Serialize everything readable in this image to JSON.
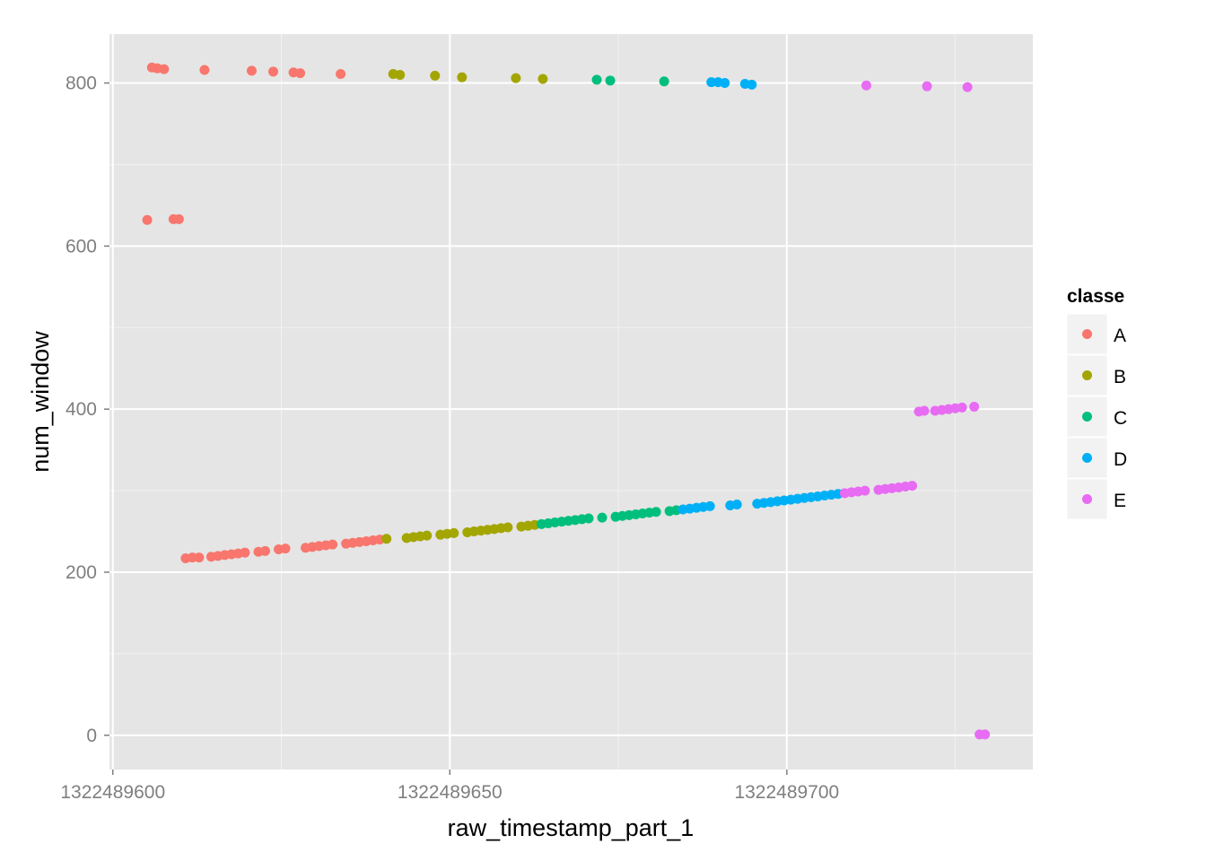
{
  "chart_data": {
    "type": "scatter",
    "title": "",
    "xlabel": "raw_timestamp_part_1",
    "ylabel": "num_window",
    "xlim": [
      1322489599.5,
      1322489736.5
    ],
    "ylim": [
      -42,
      860
    ],
    "x_ticks": [
      1322489600,
      1322489650,
      1322489700
    ],
    "x_tick_labels": [
      "1322489600",
      "1322489650",
      "1322489700"
    ],
    "y_ticks": [
      0,
      200,
      400,
      600,
      800
    ],
    "y_tick_labels": [
      "0",
      "200",
      "400",
      "600",
      "800"
    ],
    "grid": true,
    "legend": {
      "title": "classe",
      "placement": "right"
    },
    "series": [
      {
        "name": "A",
        "color": "#F8766D",
        "points": [
          [
            1322489605.1,
            632
          ],
          [
            1322489609.0,
            633
          ],
          [
            1322489609.8,
            633
          ],
          [
            1322489605.8,
            819
          ],
          [
            1322489606.6,
            818
          ],
          [
            1322489607.6,
            817
          ],
          [
            1322489613.6,
            816
          ],
          [
            1322489620.6,
            815
          ],
          [
            1322489623.8,
            814
          ],
          [
            1322489626.8,
            813
          ],
          [
            1322489627.8,
            812
          ],
          [
            1322489633.8,
            811
          ],
          [
            1322489610.8,
            217
          ],
          [
            1322489611.8,
            218
          ],
          [
            1322489612.8,
            218
          ],
          [
            1322489614.6,
            219
          ],
          [
            1322489615.6,
            220
          ],
          [
            1322489616.6,
            221
          ],
          [
            1322489617.6,
            222
          ],
          [
            1322489618.6,
            223
          ],
          [
            1322489619.6,
            224
          ],
          [
            1322489621.6,
            225
          ],
          [
            1322489622.6,
            226
          ],
          [
            1322489624.6,
            228
          ],
          [
            1322489625.6,
            229
          ],
          [
            1322489628.6,
            230
          ],
          [
            1322489629.6,
            231
          ],
          [
            1322489630.6,
            232
          ],
          [
            1322489631.6,
            233
          ],
          [
            1322489632.6,
            234
          ],
          [
            1322489634.6,
            235
          ],
          [
            1322489635.6,
            236
          ],
          [
            1322489636.6,
            237
          ],
          [
            1322489637.6,
            238
          ],
          [
            1322489638.6,
            239
          ],
          [
            1322489639.6,
            240
          ]
        ]
      },
      {
        "name": "B",
        "color": "#A3A500",
        "points": [
          [
            1322489641.6,
            811
          ],
          [
            1322489642.6,
            810
          ],
          [
            1322489647.8,
            809
          ],
          [
            1322489651.8,
            807
          ],
          [
            1322489659.8,
            806
          ],
          [
            1322489663.8,
            805
          ],
          [
            1322489640.6,
            241
          ],
          [
            1322489643.6,
            242
          ],
          [
            1322489644.6,
            243
          ],
          [
            1322489645.6,
            244
          ],
          [
            1322489646.6,
            245
          ],
          [
            1322489648.6,
            246
          ],
          [
            1322489649.6,
            247
          ],
          [
            1322489650.6,
            248
          ],
          [
            1322489652.6,
            249
          ],
          [
            1322489653.6,
            250
          ],
          [
            1322489654.6,
            251
          ],
          [
            1322489655.6,
            252
          ],
          [
            1322489656.6,
            253
          ],
          [
            1322489657.6,
            254
          ],
          [
            1322489658.6,
            255
          ],
          [
            1322489660.6,
            256
          ],
          [
            1322489661.6,
            257
          ],
          [
            1322489662.6,
            258
          ]
        ]
      },
      {
        "name": "C",
        "color": "#00BF7D",
        "points": [
          [
            1322489671.8,
            804
          ],
          [
            1322489673.8,
            803
          ],
          [
            1322489681.8,
            802
          ],
          [
            1322489663.6,
            259
          ],
          [
            1322489664.6,
            260
          ],
          [
            1322489665.6,
            261
          ],
          [
            1322489666.6,
            262
          ],
          [
            1322489667.6,
            263
          ],
          [
            1322489668.6,
            264
          ],
          [
            1322489669.6,
            265
          ],
          [
            1322489670.6,
            266
          ],
          [
            1322489672.6,
            267
          ],
          [
            1322489674.6,
            268
          ],
          [
            1322489675.6,
            269
          ],
          [
            1322489676.6,
            270
          ],
          [
            1322489677.6,
            271
          ],
          [
            1322489678.6,
            272
          ],
          [
            1322489679.6,
            273
          ],
          [
            1322489680.6,
            274
          ],
          [
            1322489682.6,
            275
          ],
          [
            1322489683.6,
            276
          ]
        ]
      },
      {
        "name": "D",
        "color": "#00B0F6",
        "points": [
          [
            1322489688.8,
            801
          ],
          [
            1322489689.8,
            801
          ],
          [
            1322489690.8,
            800
          ],
          [
            1322489693.8,
            799
          ],
          [
            1322489694.8,
            798
          ],
          [
            1322489684.6,
            277
          ],
          [
            1322489685.6,
            278
          ],
          [
            1322489686.6,
            279
          ],
          [
            1322489687.6,
            280
          ],
          [
            1322489688.6,
            281
          ],
          [
            1322489691.6,
            282
          ],
          [
            1322489692.6,
            283
          ],
          [
            1322489695.6,
            284
          ],
          [
            1322489696.6,
            285
          ],
          [
            1322489697.6,
            286
          ],
          [
            1322489698.6,
            287
          ],
          [
            1322489699.6,
            288
          ],
          [
            1322489700.6,
            289
          ],
          [
            1322489701.6,
            290
          ],
          [
            1322489702.6,
            291
          ],
          [
            1322489703.6,
            292
          ],
          [
            1322489704.6,
            293
          ],
          [
            1322489705.6,
            294
          ],
          [
            1322489706.6,
            295
          ],
          [
            1322489707.6,
            296
          ]
        ]
      },
      {
        "name": "E",
        "color": "#E76BF3",
        "points": [
          [
            1322489711.8,
            797
          ],
          [
            1322489720.8,
            796
          ],
          [
            1322489726.8,
            795
          ],
          [
            1322489708.6,
            297
          ],
          [
            1322489709.6,
            298
          ],
          [
            1322489710.6,
            299
          ],
          [
            1322489711.6,
            300
          ],
          [
            1322489713.6,
            301
          ],
          [
            1322489714.6,
            302
          ],
          [
            1322489715.6,
            303
          ],
          [
            1322489716.6,
            304
          ],
          [
            1322489717.6,
            305
          ],
          [
            1322489718.6,
            306
          ],
          [
            1322489719.6,
            397
          ],
          [
            1322489720.4,
            398
          ],
          [
            1322489722.0,
            398
          ],
          [
            1322489723.0,
            399
          ],
          [
            1322489724.0,
            400
          ],
          [
            1322489725.0,
            401
          ],
          [
            1322489726.0,
            402
          ],
          [
            1322489727.8,
            403
          ],
          [
            1322489728.6,
            1
          ],
          [
            1322489729.4,
            1
          ]
        ]
      }
    ]
  }
}
